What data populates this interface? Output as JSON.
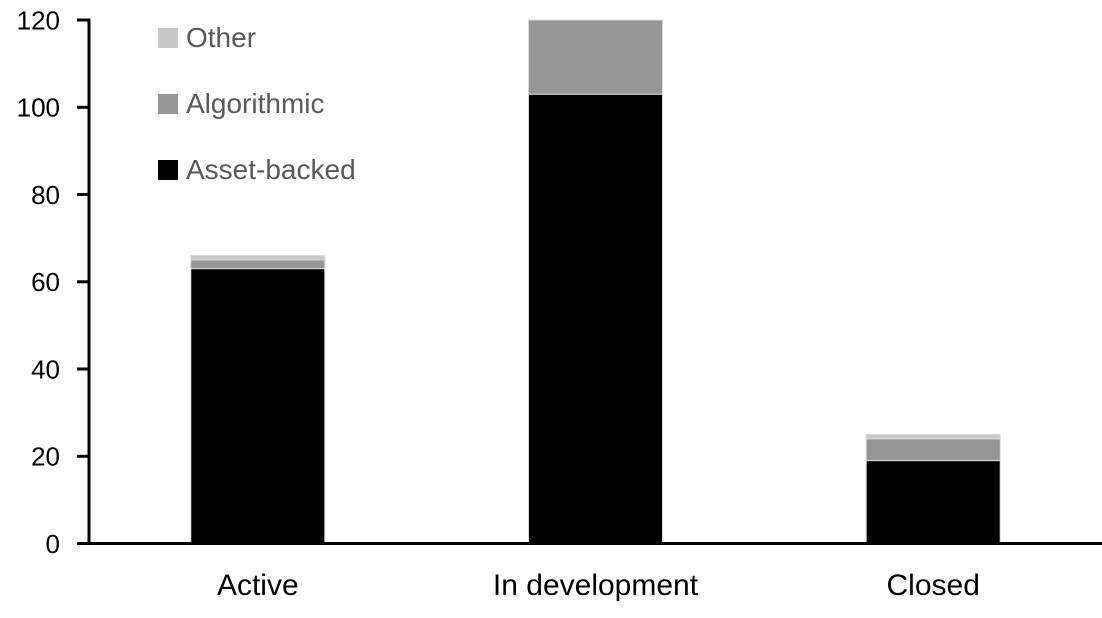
{
  "chart_data": {
    "type": "bar",
    "stacked": true,
    "title": "",
    "xlabel": "",
    "ylabel": "",
    "categories": [
      "Active",
      "In development",
      "Closed"
    ],
    "series": [
      {
        "name": "Asset-backed",
        "color": "#000000",
        "values": [
          63,
          103,
          19
        ]
      },
      {
        "name": "Algorithmic",
        "color": "#969696",
        "values": [
          2,
          17,
          5
        ]
      },
      {
        "name": "Other",
        "color": "#c8c8c8",
        "values": [
          1,
          0,
          1
        ]
      }
    ],
    "stack_totals": [
      66,
      120,
      25
    ],
    "ylim": [
      0,
      120
    ],
    "yticks": [
      0,
      20,
      40,
      60,
      80,
      100,
      120
    ],
    "grid": "off",
    "legend_position": "top-left",
    "legend_order": [
      "Other",
      "Algorithmic",
      "Asset-backed"
    ],
    "colors": {
      "axis": "#000000",
      "tick_label": "#000000",
      "category_label": "#000000",
      "legend_text": "#595959",
      "bar_border": "#d9d9d9",
      "background": "#ffffff"
    }
  }
}
